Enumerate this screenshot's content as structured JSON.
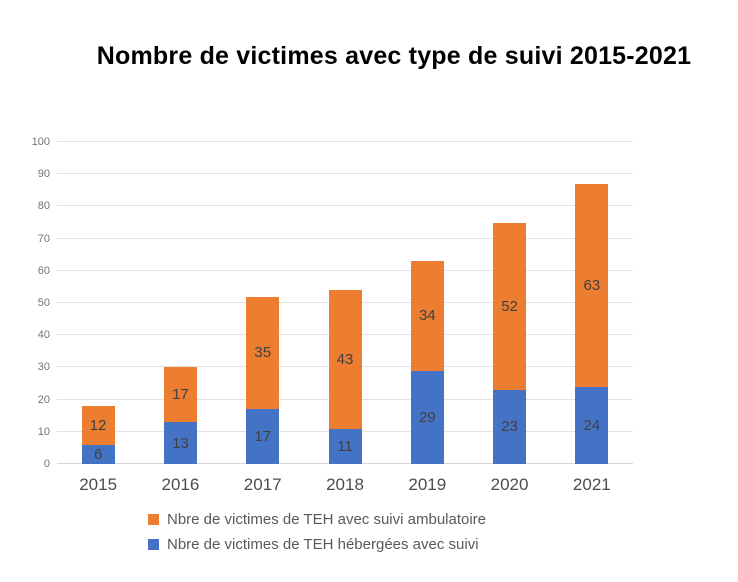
{
  "chart_data": {
    "type": "bar",
    "stacked": true,
    "title": "Nombre de victimes avec type de suivi 2015-2021",
    "categories": [
      "2015",
      "2016",
      "2017",
      "2018",
      "2019",
      "2020",
      "2021"
    ],
    "series": [
      {
        "name": "Nbre de victimes de TEH hébergées avec suivi",
        "color": "#4472C4",
        "values": [
          6,
          13,
          17,
          11,
          29,
          23,
          24
        ]
      },
      {
        "name": "Nbre de victimes de TEH avec suivi ambulatoire",
        "color": "#ED7D31",
        "values": [
          12,
          17,
          35,
          43,
          34,
          52,
          63
        ]
      }
    ],
    "legend": [
      {
        "label": "Nbre de victimes de TEH avec suivi ambulatoire",
        "color": "#ED7D31"
      },
      {
        "label": "Nbre de victimes de TEH hébergées avec suivi",
        "color": "#4472C4"
      }
    ],
    "ylim": [
      0,
      100
    ],
    "ytick_step": 10,
    "grid": true,
    "legend_position": "bottom-left",
    "value_label_color": "#404040"
  },
  "colors": {
    "background": "#ffffff",
    "gridline": "#e2e2e2",
    "axis_tick_text": "#737373",
    "category_text": "#4d4d4d",
    "legend_text": "#595959",
    "title_text": "#000000"
  }
}
